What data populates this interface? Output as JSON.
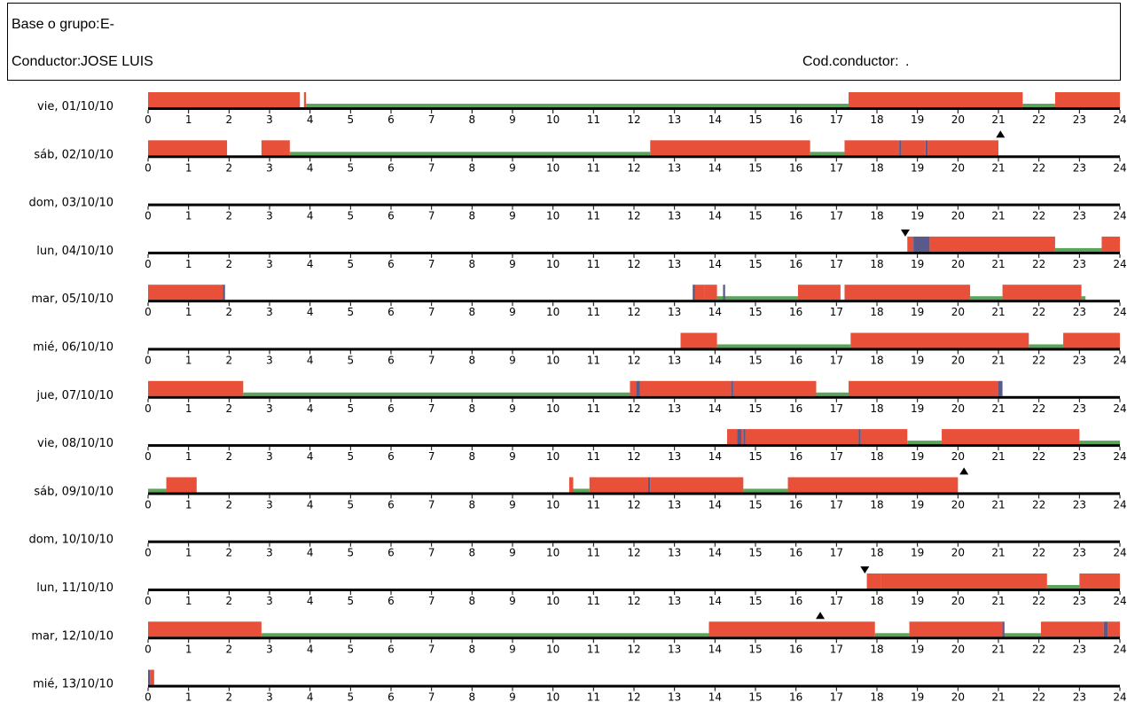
{
  "header": {
    "base_label": "Base o grupo:",
    "base_value": "E-",
    "driver_label": "Conductor:",
    "driver_value": "JOSE LUIS",
    "code_label": "Cod.conductor:",
    "code_value": "."
  },
  "chart_data": {
    "type": "gantt",
    "x_range": [
      0,
      24
    ],
    "x_ticks": [
      "0",
      "1",
      "2",
      "3",
      "4",
      "5",
      "6",
      "7",
      "8",
      "9",
      "10",
      "11",
      "12",
      "13",
      "14",
      "15",
      "16",
      "17",
      "18",
      "19",
      "20",
      "21",
      "22",
      "23",
      "24"
    ],
    "legend": [],
    "colors": {
      "driving": "#e8503a",
      "rest": "#5aa55a",
      "other": "#5a5a8a",
      "axis": "#000000"
    },
    "days": [
      {
        "label": "vie, 01/10/10",
        "driving": [
          [
            0,
            3.75
          ],
          [
            3.85,
            3.9
          ],
          [
            17.3,
            21.6
          ],
          [
            22.4,
            24
          ]
        ],
        "rest": [
          [
            3.9,
            17.3
          ],
          [
            21.6,
            22.4
          ]
        ],
        "other": [],
        "markers": []
      },
      {
        "label": "sáb, 02/10/10",
        "driving": [
          [
            0,
            1.95
          ],
          [
            2.8,
            3.5
          ],
          [
            12.4,
            16.35
          ],
          [
            17.2,
            18.55
          ],
          [
            18.6,
            19.2
          ],
          [
            19.25,
            21
          ]
        ],
        "rest": [
          [
            3.5,
            12.4
          ],
          [
            16.35,
            17.2
          ]
        ],
        "other": [
          [
            18.55,
            18.6
          ],
          [
            19.2,
            19.25
          ]
        ],
        "markers": [
          {
            "t": 21.05,
            "dir": "up"
          }
        ]
      },
      {
        "label": "dom, 03/10/10",
        "driving": [],
        "rest": [],
        "other": [],
        "markers": []
      },
      {
        "label": "lun, 04/10/10",
        "driving": [
          [
            18.75,
            18.9
          ],
          [
            19.3,
            22.4
          ],
          [
            23.55,
            24
          ]
        ],
        "rest": [
          [
            22.4,
            23.55
          ]
        ],
        "other": [
          [
            18.9,
            19.3
          ]
        ],
        "markers": [
          {
            "t": 18.7,
            "dir": "down"
          }
        ]
      },
      {
        "label": "mar, 05/10/10",
        "driving": [
          [
            0,
            1.85
          ],
          [
            13.5,
            13.75
          ],
          [
            13.75,
            14.05
          ],
          [
            16.05,
            17.1
          ],
          [
            17.2,
            20.3
          ],
          [
            21.1,
            23.05
          ]
        ],
        "rest": [
          [
            14.05,
            16.05
          ],
          [
            20.3,
            21.1
          ],
          [
            23.05,
            23.15
          ]
        ],
        "other": [
          [
            1.85,
            1.9
          ],
          [
            13.45,
            13.5
          ],
          [
            14.2,
            14.25
          ]
        ],
        "markers": []
      },
      {
        "label": "mié, 06/10/10",
        "driving": [
          [
            13.15,
            14.05
          ],
          [
            17.35,
            21.75
          ],
          [
            22.6,
            24
          ]
        ],
        "rest": [
          [
            14.05,
            17.35
          ],
          [
            21.75,
            22.6
          ]
        ],
        "other": [],
        "markers": []
      },
      {
        "label": "jue, 07/10/10",
        "driving": [
          [
            0,
            2.35
          ],
          [
            11.9,
            12.05
          ],
          [
            12.15,
            14.4
          ],
          [
            14.45,
            16.5
          ],
          [
            17.3,
            21
          ]
        ],
        "rest": [
          [
            2.35,
            11.9
          ],
          [
            16.5,
            17.3
          ]
        ],
        "other": [
          [
            12.05,
            12.15
          ],
          [
            14.4,
            14.45
          ],
          [
            21,
            21.1
          ]
        ],
        "markers": []
      },
      {
        "label": "vie, 08/10/10",
        "driving": [
          [
            14.3,
            14.55
          ],
          [
            14.65,
            14.7
          ],
          [
            14.75,
            17.55
          ],
          [
            17.6,
            18.75
          ],
          [
            19.6,
            23.0
          ]
        ],
        "rest": [
          [
            18.75,
            19.6
          ],
          [
            23.0,
            24
          ]
        ],
        "other": [
          [
            14.55,
            14.65
          ],
          [
            14.7,
            14.75
          ],
          [
            17.55,
            17.6
          ]
        ],
        "markers": []
      },
      {
        "label": "sáb, 09/10/10",
        "driving": [
          [
            0.45,
            1.2
          ],
          [
            10.4,
            10.5
          ],
          [
            10.9,
            12.35
          ],
          [
            12.4,
            14.7
          ],
          [
            15.8,
            20
          ]
        ],
        "rest": [
          [
            0,
            0.45
          ],
          [
            10.5,
            10.9
          ],
          [
            14.7,
            15.8
          ]
        ],
        "other": [
          [
            12.35,
            12.4
          ]
        ],
        "markers": [
          {
            "t": 20.15,
            "dir": "up"
          }
        ]
      },
      {
        "label": "dom, 10/10/10",
        "driving": [],
        "rest": [],
        "other": [],
        "markers": []
      },
      {
        "label": "lun, 11/10/10",
        "driving": [
          [
            17.75,
            18.1
          ],
          [
            18.1,
            22.2
          ],
          [
            23.0,
            24
          ]
        ],
        "rest": [
          [
            22.2,
            23.0
          ]
        ],
        "other": [],
        "markers": [
          {
            "t": 17.7,
            "dir": "down"
          }
        ]
      },
      {
        "label": "mar, 12/10/10",
        "driving": [
          [
            0,
            2.8
          ],
          [
            13.85,
            17.95
          ],
          [
            18.8,
            21.1
          ],
          [
            22.05,
            23.6
          ],
          [
            23.7,
            24
          ]
        ],
        "rest": [
          [
            2.8,
            13.85
          ],
          [
            17.95,
            18.8
          ],
          [
            21.1,
            22.05
          ]
        ],
        "other": [
          [
            21.1,
            21.15
          ],
          [
            23.6,
            23.7
          ]
        ],
        "markers": [
          {
            "t": 16.6,
            "dir": "up"
          }
        ]
      },
      {
        "label": "mié, 13/10/10",
        "driving": [
          [
            0.05,
            0.15
          ]
        ],
        "rest": [],
        "other": [
          [
            0,
            0.05
          ]
        ],
        "markers": []
      }
    ]
  }
}
